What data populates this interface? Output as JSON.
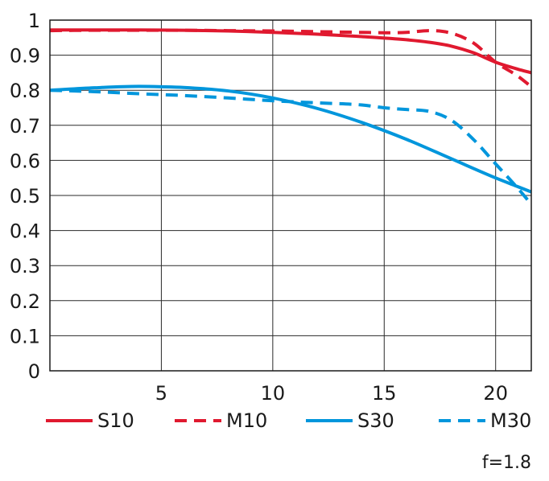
{
  "chart_data": {
    "type": "line",
    "xlim": [
      0,
      21.6
    ],
    "ylim": [
      0,
      1
    ],
    "x_ticks": [
      5,
      10,
      15,
      20
    ],
    "y_ticks": [
      0,
      0.1,
      0.2,
      0.3,
      0.4,
      0.5,
      0.6,
      0.7,
      0.8,
      0.9,
      1
    ],
    "y_tick_labels": [
      "0",
      "0.1",
      "0.2",
      "0.3",
      "0.4",
      "0.5",
      "0.6",
      "0.7",
      "0.8",
      "0.9",
      "1"
    ],
    "x_tick_labels": [
      "5",
      "10",
      "15",
      "20"
    ],
    "grid": true,
    "legend_position": "bottom",
    "annotation": "f=1.8",
    "series": [
      {
        "name": "S10",
        "color": "#e0192f",
        "style": "solid",
        "x": [
          0,
          2,
          4,
          6,
          8,
          10,
          12,
          14,
          16,
          17,
          18,
          19,
          20,
          21,
          21.6
        ],
        "y": [
          0.972,
          0.972,
          0.972,
          0.971,
          0.969,
          0.965,
          0.96,
          0.953,
          0.944,
          0.937,
          0.926,
          0.907,
          0.88,
          0.86,
          0.85
        ]
      },
      {
        "name": "M10",
        "color": "#e0192f",
        "style": "dashed",
        "x": [
          0,
          2,
          4,
          6,
          8,
          10,
          12,
          14,
          15,
          16,
          17,
          18,
          19,
          20,
          21,
          21.6
        ],
        "y": [
          0.97,
          0.971,
          0.971,
          0.971,
          0.97,
          0.969,
          0.967,
          0.965,
          0.964,
          0.965,
          0.97,
          0.963,
          0.935,
          0.88,
          0.84,
          0.81
        ]
      },
      {
        "name": "S30",
        "color": "#0096dc",
        "style": "solid",
        "x": [
          0,
          2,
          4,
          5,
          6,
          8,
          10,
          12,
          14,
          16,
          18,
          20,
          21,
          21.6
        ],
        "y": [
          0.8,
          0.807,
          0.811,
          0.81,
          0.808,
          0.798,
          0.778,
          0.748,
          0.708,
          0.66,
          0.605,
          0.55,
          0.525,
          0.51
        ]
      },
      {
        "name": "M30",
        "color": "#0096dc",
        "style": "dashed",
        "x": [
          0,
          2,
          4,
          6,
          8,
          10,
          12,
          14,
          15,
          16,
          17,
          18,
          19,
          20,
          21,
          21.6
        ],
        "y": [
          0.8,
          0.796,
          0.79,
          0.785,
          0.778,
          0.77,
          0.764,
          0.758,
          0.75,
          0.745,
          0.74,
          0.715,
          0.66,
          0.59,
          0.52,
          0.475
        ]
      }
    ]
  }
}
